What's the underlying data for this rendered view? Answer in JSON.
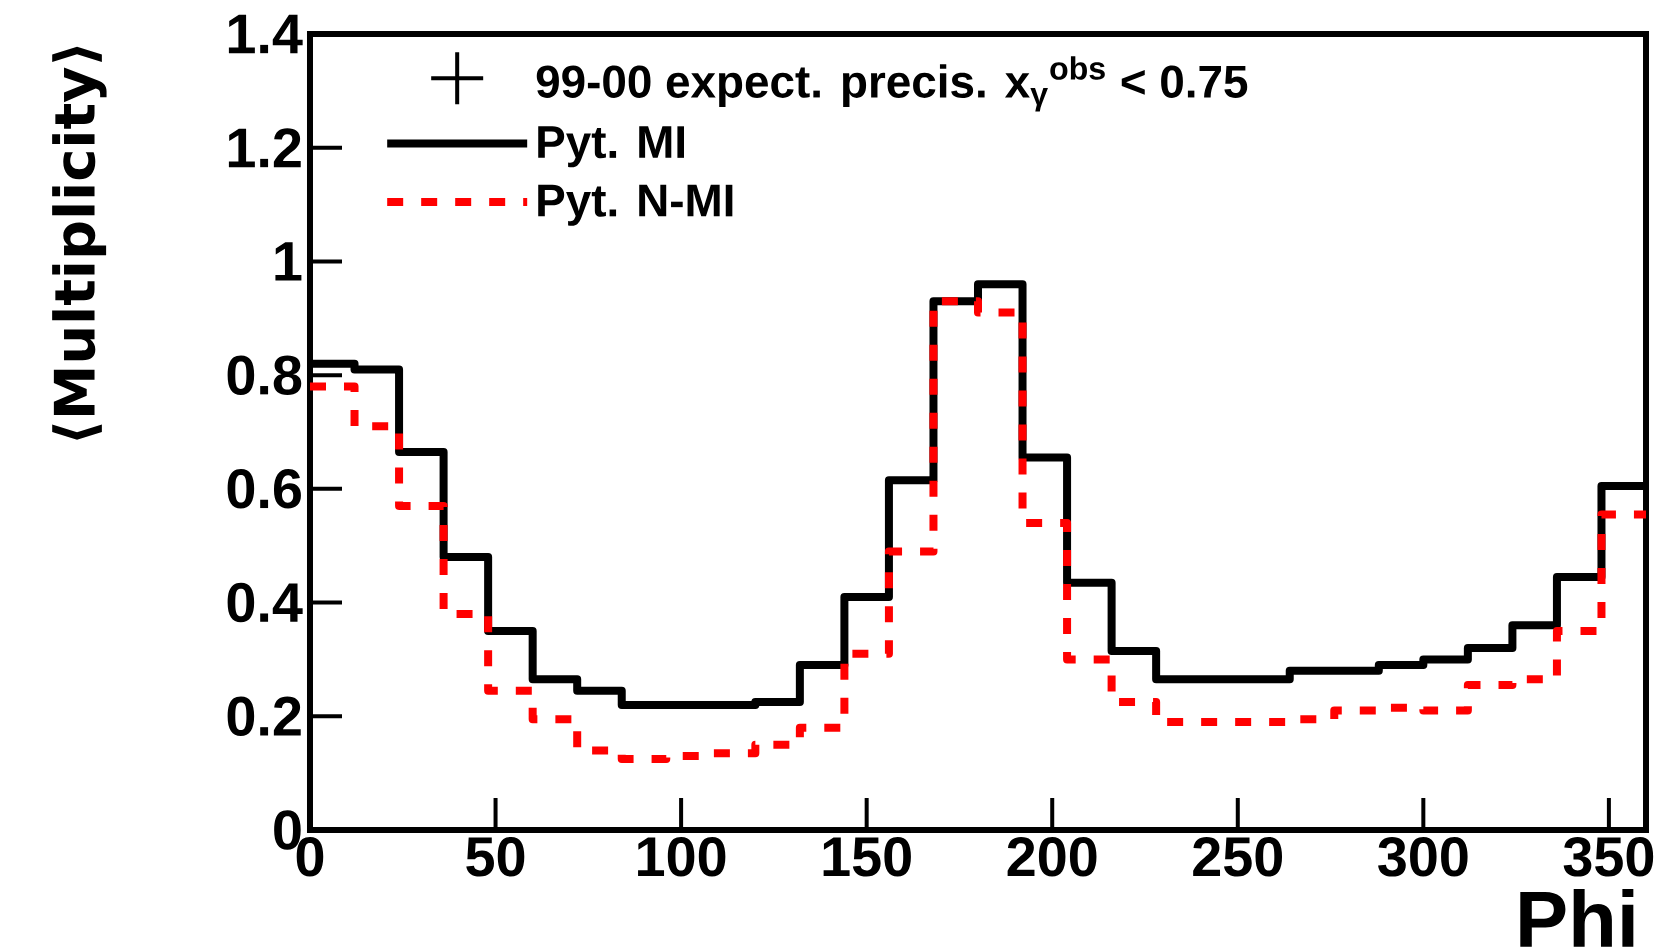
{
  "chart_data": {
    "type": "histogram",
    "xlabel": "Phi",
    "ylabel": "⟨Multiplicity⟩",
    "bins": [
      0,
      12,
      24,
      36,
      48,
      60,
      72,
      84,
      96,
      108,
      120,
      132,
      144,
      156,
      168,
      180,
      192,
      204,
      216,
      228,
      240,
      252,
      264,
      276,
      288,
      300,
      312,
      324,
      336,
      348,
      360
    ],
    "series": [
      {
        "name": "Pyt. MI",
        "color": "#000000",
        "line_style": "solid",
        "values": [
          0.82,
          0.81,
          0.665,
          0.48,
          0.35,
          0.265,
          0.245,
          0.22,
          0.22,
          0.22,
          0.225,
          0.29,
          0.41,
          0.615,
          0.93,
          0.96,
          0.655,
          0.435,
          0.315,
          0.265,
          0.265,
          0.265,
          0.28,
          0.28,
          0.29,
          0.3,
          0.32,
          0.36,
          0.445,
          0.605
        ]
      },
      {
        "name": "Pyt. N-MI",
        "color": "#ff0000",
        "line_style": "dashed",
        "values": [
          0.78,
          0.71,
          0.57,
          0.38,
          0.245,
          0.195,
          0.14,
          0.125,
          0.13,
          0.135,
          0.15,
          0.18,
          0.31,
          0.49,
          0.93,
          0.91,
          0.54,
          0.3,
          0.225,
          0.19,
          0.19,
          0.19,
          0.195,
          0.21,
          0.215,
          0.21,
          0.255,
          0.265,
          0.35,
          0.555
        ]
      },
      {
        "type": "scatter",
        "name": "99-00 expect. precis. x$_{γ}$$^{obs}$ < 0.75",
        "color": "#000000",
        "marker": "cross",
        "values": [
          null,
          null,
          null,
          null,
          null,
          null,
          null,
          null,
          null,
          null,
          null,
          null,
          null,
          null,
          null,
          null,
          null,
          null,
          null,
          null,
          null,
          null,
          null,
          null,
          null,
          null,
          null,
          null,
          null,
          null
        ]
      }
    ],
    "xlim": [
      0,
      360
    ],
    "ylim": [
      0,
      1.4
    ],
    "xticks": [
      0,
      50,
      100,
      150,
      200,
      250,
      300,
      350
    ],
    "yticks": [
      0,
      0.2,
      0.4,
      0.6,
      0.8,
      1,
      1.2,
      1.4
    ],
    "legend": "top left",
    "grid": false
  }
}
